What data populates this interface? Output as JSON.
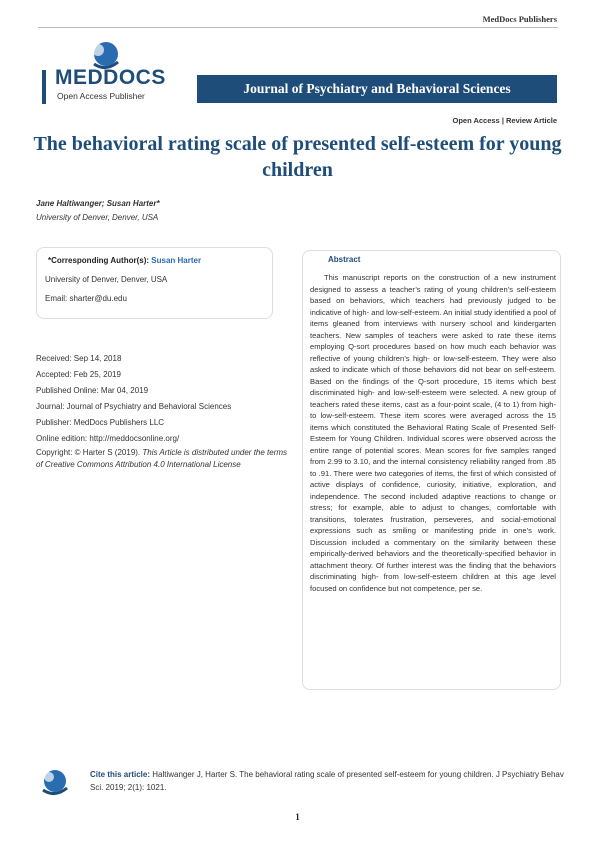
{
  "header": {
    "publisher": "MedDocs Publishers",
    "logo_word": "MEDDOCS",
    "logo_sub": "Open Access Publisher",
    "journal_name": "Journal of Psychiatry and Behavioral Sciences",
    "article_type": "Open Access | Review Article"
  },
  "article": {
    "title": "The behavioral rating scale of presented self-esteem for young children",
    "authors": "Jane Haltiwanger; Susan Harter*",
    "affiliation": "University of Denver, Denver, USA"
  },
  "correspondence": {
    "label": "*Corresponding Author(s):",
    "name": "Susan Harter",
    "affiliation": "University of Denver, Denver, USA",
    "email": "Email: sharter@du.edu"
  },
  "meta": {
    "received": "Received: Sep 14, 2018",
    "accepted": "Accepted: Feb 25, 2019",
    "published": "Published Online: Mar 04, 2019",
    "journal": "Journal: Journal of Psychiatry and Behavioral Sciences",
    "publisher": "Publisher: MedDocs Publishers LLC",
    "online": "Online edition: http://meddocsonline.org/",
    "copyright_lead": "Copyright: © Harter S (2019).",
    "copyright_rest": "This Article is distributed under the terms of Creative Commons Attribution 4.0 International License"
  },
  "abstract": {
    "label": "Abstract",
    "text": "This manuscript reports on the construction of a new instrument designed to assess a teacher’s rating of young children’s self-esteem based on behaviors, which teachers had previously judged to be indicative of high- and low-self-esteem. An initial study identified a pool of items gleaned from interviews with nursery school and kindergarten teachers. New samples of teachers were asked to rate these items employing Q-sort procedures based on how much each behavior was reflective of young children’s high- or low-self-esteem. They were also asked to indicate which of those behaviors did not bear on self-esteem. Based on the findings of the Q-sort procedure, 15 items which best discriminated high- and low-self-esteem were selected. A new group of teachers rated these items, cast as a four-point scale, (4 to 1) from high- to low-self-esteem. These item scores were averaged across the 15 items which constituted the Behavioral Rating Scale of Presented Self-Esteem for Young Children. Individual scores were observed across the entire range of potential scores. Mean scores for five samples ranged from 2.99 to 3.10, and the internal consistency reliability ranged from .85 to .91. There were two categories of items, the first of which consisted of active displays of confidence, curiosity, initiative, exploration, and independence. The second included adaptive reactions to change or stress; for example, able to adjust to changes, comfortable with transitions, tolerates frustration, perseveres, and social-emotional expressions such as smiling or manifesting pride in one’s work. Discussion included a commentary on the similarity between these empirically-derived behaviors and the theoretically-specified behavior in attachment theory. Of further interest was the finding that the behaviors discriminating high- from low-self-esteem children at this age level focused on confidence but not competence, per se."
  },
  "citation": {
    "label": "Cite this article:",
    "text": "Haltiwanger J, Harter S. The behavioral rating scale of presented self-esteem for young children. J Psychiatry Behav Sci. 2019; 2(1): 1021."
  },
  "footer": {
    "page_number": "1"
  },
  "colors": {
    "brand_blue": "#1f4d7a",
    "accent_light_blue": "#2a6cb0"
  },
  "icons": [
    "meddocs-logo-icon",
    "footer-logo-icon"
  ]
}
